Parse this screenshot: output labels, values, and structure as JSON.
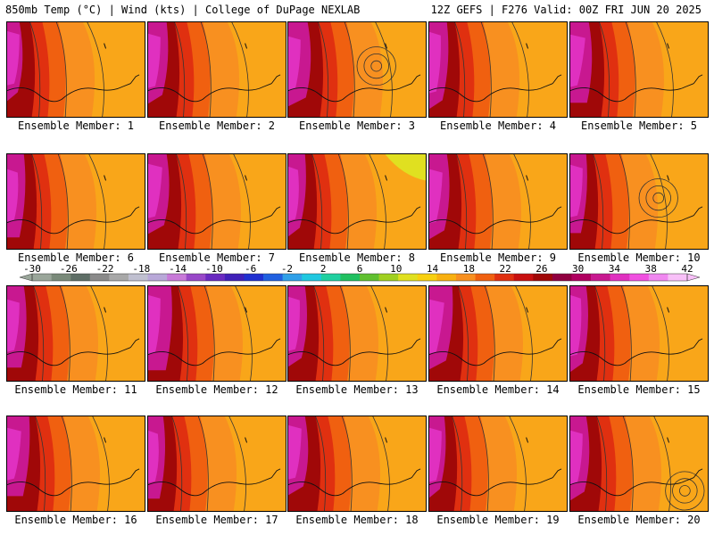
{
  "header": {
    "left": "850mb Temp (°C) | Wind (kts) | College of DuPage NEXLAB",
    "right": "12Z GEFS | F276 Valid: 00Z FRI JUN 20 2025"
  },
  "panels": [
    {
      "label": "Ensemble Member: 1"
    },
    {
      "label": "Ensemble Member: 2"
    },
    {
      "label": "Ensemble Member: 3"
    },
    {
      "label": "Ensemble Member: 4"
    },
    {
      "label": "Ensemble Member: 5"
    },
    {
      "label": "Ensemble Member: 6"
    },
    {
      "label": "Ensemble Member: 7"
    },
    {
      "label": "Ensemble Member: 8"
    },
    {
      "label": "Ensemble Member: 9"
    },
    {
      "label": "Ensemble Member: 10"
    },
    {
      "label": "Ensemble Member: 11"
    },
    {
      "label": "Ensemble Member: 12"
    },
    {
      "label": "Ensemble Member: 13"
    },
    {
      "label": "Ensemble Member: 14"
    },
    {
      "label": "Ensemble Member: 15"
    },
    {
      "label": "Ensemble Member: 16"
    },
    {
      "label": "Ensemble Member: 17"
    },
    {
      "label": "Ensemble Member: 18"
    },
    {
      "label": "Ensemble Member: 19"
    },
    {
      "label": "Ensemble Member: 20"
    }
  ],
  "colorbar": {
    "ticks": [
      "-30",
      "-26",
      "-22",
      "-18",
      "-14",
      "-10",
      "-6",
      "-2",
      "2",
      "6",
      "10",
      "14",
      "18",
      "22",
      "26",
      "30",
      "34",
      "38",
      "42"
    ],
    "colors": [
      "#9aa69a",
      "#7a8a7a",
      "#5e6e66",
      "#8a8a8a",
      "#a8a8a8",
      "#c0c0d0",
      "#b8a8d8",
      "#c87ad8",
      "#9848c8",
      "#6a2ac0",
      "#4020b8",
      "#2030d0",
      "#2060e0",
      "#30a0e8",
      "#20c8e0",
      "#20d0a0",
      "#20c060",
      "#60c030",
      "#a0d020",
      "#e0e020",
      "#f8d010",
      "#f8b010",
      "#f89020",
      "#f06010",
      "#e03010",
      "#c81010",
      "#a00808",
      "#900040",
      "#b00060",
      "#c81890",
      "#e030c0",
      "#f050e0",
      "#f088f0",
      "#f8c0f8"
    ],
    "left_arrow_color": "#9aa69a",
    "right_arrow_color": "#f8c0f8"
  }
}
